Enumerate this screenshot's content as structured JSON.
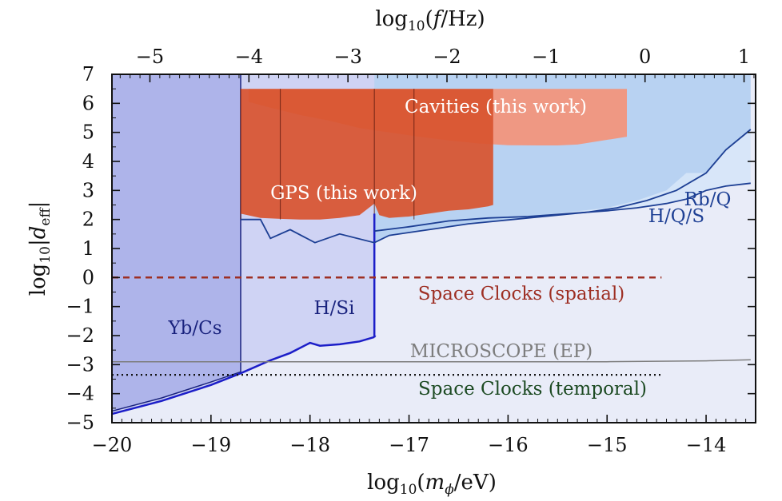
{
  "chart_data": {
    "type": "area",
    "xlabel": "log₁₀(m_ϕ/eV)",
    "ylabel": "log₁₀|d_eff|",
    "top_xlabel": "log₁₀(f/Hz)",
    "xlim": [
      -20,
      -13.5
    ],
    "ylim": [
      -5,
      7
    ],
    "top_xlim": [
      -5.3833,
      1.1167
    ],
    "x_ticks": [
      -20,
      -19,
      -18,
      -17,
      -16,
      -15,
      -14
    ],
    "x_tick_labels": [
      "−20",
      "−19",
      "−18",
      "−17",
      "−16",
      "−15",
      "−14"
    ],
    "y_ticks": [
      -5,
      -4,
      -3,
      -2,
      -1,
      0,
      1,
      2,
      3,
      4,
      5,
      6,
      7
    ],
    "y_tick_labels": [
      "−5",
      "−4",
      "−3",
      "−2",
      "−1",
      "0",
      "1",
      "2",
      "3",
      "4",
      "5",
      "6",
      "7"
    ],
    "top_ticks": [
      -5,
      -4,
      -3,
      -2,
      -1,
      0,
      1
    ],
    "top_tick_labels": [
      "−5",
      "−4",
      "−3",
      "−2",
      "−1",
      "0",
      "1"
    ],
    "grid": false,
    "colors": {
      "clock_bg": "#e9ecf8",
      "blue_region": "#b8d2f2",
      "blue_light": "#d6e5f8",
      "yb_region": "#aeb4ea",
      "hsi_region": "#cfd3f4",
      "purple_line": "#1c1ec8",
      "navy_line": "#1d3f94",
      "cavities": "#f3937a",
      "gps": "#d8542f",
      "space_spatial": "#9e2f24",
      "space_temporal": "#1c4a22",
      "microscope": "#7d7d7d"
    },
    "series": [
      {
        "name": "Cavities (this work)",
        "kind": "band",
        "x": [
          -18.62,
          -18.4,
          -18.1,
          -17.8,
          -17.5,
          -17.2,
          -16.9,
          -16.6,
          -16.3,
          -16.0,
          -15.7,
          -15.5,
          -15.3,
          -14.8
        ],
        "lower": [
          6.05,
          5.85,
          5.6,
          5.4,
          5.15,
          5.0,
          4.85,
          4.72,
          4.62,
          4.56,
          4.55,
          4.55,
          4.58,
          4.85
        ],
        "upper": [
          6.5,
          6.5,
          6.5,
          6.5,
          6.5,
          6.5,
          6.5,
          6.5,
          6.5,
          6.5,
          6.5,
          6.5,
          6.5,
          6.5
        ]
      },
      {
        "name": "GPS (this work)",
        "kind": "band",
        "x": [
          -18.7,
          -18.5,
          -18.3,
          -18.1,
          -17.9,
          -17.7,
          -17.5,
          -17.35,
          -17.3,
          -17.2,
          -17.0,
          -16.8,
          -16.6,
          -16.4,
          -16.2,
          -16.15
        ],
        "lower": [
          2.2,
          2.05,
          2.02,
          2.0,
          2.0,
          2.05,
          2.15,
          2.55,
          2.15,
          2.05,
          2.1,
          2.2,
          2.3,
          2.35,
          2.45,
          2.5
        ],
        "upper": [
          6.5,
          6.5,
          6.5,
          6.5,
          6.5,
          6.5,
          6.5,
          6.5,
          6.5,
          6.5,
          6.5,
          6.5,
          6.5,
          6.5,
          6.5,
          6.5
        ]
      },
      {
        "name": "Yb/Cs",
        "kind": "region",
        "x": [
          -20,
          -19.5,
          -19.0,
          -18.7
        ],
        "lower": [
          -4.6,
          -4.15,
          -3.6,
          -3.25
        ],
        "upper": [
          7,
          7,
          7,
          7
        ]
      },
      {
        "name": "H/Si",
        "kind": "line",
        "x": [
          -20,
          -19.5,
          -19.0,
          -18.7,
          -18.4,
          -18.2,
          -18.0,
          -17.9,
          -17.7,
          -17.5,
          -17.35
        ],
        "y": [
          -4.7,
          -4.25,
          -3.7,
          -3.3,
          -2.85,
          -2.6,
          -2.25,
          -2.35,
          -2.3,
          -2.2,
          -2.05
        ]
      },
      {
        "name": "H/Q/S",
        "kind": "line",
        "x": [
          -18.7,
          -18.5,
          -18.4,
          -18.2,
          -17.95,
          -17.7,
          -17.35,
          -17.2,
          -17.0,
          -16.7,
          -16.4,
          -16.1,
          -15.8,
          -15.5,
          -15.2,
          -14.9,
          -14.6,
          -14.3,
          -14.0,
          -13.8,
          -13.55
        ],
        "y": [
          2.0,
          2.0,
          1.35,
          1.65,
          1.2,
          1.5,
          1.2,
          1.45,
          1.55,
          1.7,
          1.85,
          1.95,
          2.05,
          2.15,
          2.25,
          2.4,
          2.65,
          3.0,
          3.6,
          4.4,
          5.1
        ]
      },
      {
        "name": "Rb/Q",
        "kind": "line",
        "x": [
          -17.35,
          -17.0,
          -16.6,
          -16.2,
          -15.8,
          -15.4,
          -15.0,
          -14.7,
          -14.4,
          -14.2,
          -14.0,
          -13.8,
          -13.55
        ],
        "y": [
          1.6,
          1.75,
          1.95,
          2.05,
          2.1,
          2.2,
          2.3,
          2.4,
          2.55,
          2.7,
          3.0,
          3.15,
          3.25
        ]
      },
      {
        "name": "MICROSCOPE (EP)",
        "kind": "line",
        "x": [
          -20,
          -19.0,
          -18.0,
          -17.0,
          -16.0,
          -15.0,
          -14.0,
          -13.55
        ],
        "y": [
          -2.9,
          -2.9,
          -2.9,
          -2.9,
          -2.9,
          -2.9,
          -2.87,
          -2.83
        ]
      },
      {
        "name": "Space Clocks (spatial)",
        "kind": "dashed",
        "x": [
          -20,
          -14.45
        ],
        "y": [
          0,
          0
        ]
      },
      {
        "name": "Space Clocks (temporal)",
        "kind": "dotted",
        "x": [
          -20,
          -14.45
        ],
        "y": [
          -3.35,
          -3.35
        ]
      }
    ],
    "annotations": {
      "cavities": "Cavities (this work)",
      "gps": "GPS (this work)",
      "rbq": "Rb/Q",
      "hqs": "H/Q/S",
      "space_spatial": "Space Clocks (spatial)",
      "hsi": "H/Si",
      "ybcs": "Yb/Cs",
      "microscope": "MICROSCOPE (EP)",
      "space_temporal": "Space Clocks (temporal)"
    }
  }
}
